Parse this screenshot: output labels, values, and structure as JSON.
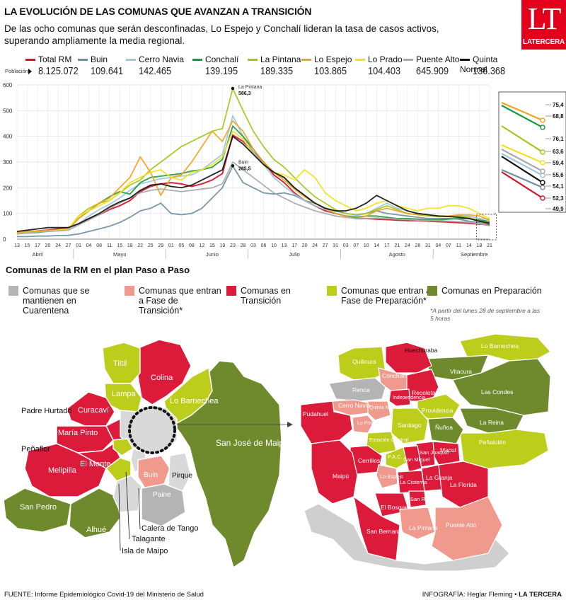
{
  "header": {
    "title": "LA EVOLUCIÓN DE LAS COMUNAS QUE AVANZAN A TRANSICIÓN",
    "subtitle": "De las ocho comunas que serán desconfinadas, Lo Espejo y Conchalí lideran la tasa de casos activos, superando ampliamente la media regional.",
    "logo_main": "LT",
    "logo_sub": "LATERCERA"
  },
  "legend": {
    "population_label": "Población",
    "items": [
      {
        "name": "Total RM",
        "population": "8.125.072",
        "color": "#d7132b"
      },
      {
        "name": "Buin",
        "population": "109.641",
        "color": "#6f8fa1"
      },
      {
        "name": "Cerro Navia",
        "population": "142.465",
        "color": "#9dc6e0"
      },
      {
        "name": "Conchalí",
        "population": "139.195",
        "color": "#1a9a3c"
      },
      {
        "name": "La Pintana",
        "population": "189.335",
        "color": "#a6c51a"
      },
      {
        "name": "Lo Espejo",
        "population": "103.865",
        "color": "#f2a31c"
      },
      {
        "name": "Lo Prado",
        "population": "104.403",
        "color": "#f5e11b"
      },
      {
        "name": "Puente Alto",
        "population": "645.909",
        "color": "#a9a9a9"
      },
      {
        "name": "Quinta Normal",
        "population": "136.368",
        "color": "#111111"
      }
    ]
  },
  "chart_data": {
    "type": "line",
    "ylim": [
      0,
      600
    ],
    "yticks": [
      0,
      100,
      200,
      300,
      400,
      500,
      600
    ],
    "x_day_labels": [
      "13",
      "15",
      "17",
      "20",
      "24",
      "27",
      "01",
      "04",
      "08",
      "11",
      "15",
      "18",
      "22",
      "25",
      "29",
      "01",
      "05",
      "08",
      "12",
      "15",
      "19",
      "23",
      "28",
      "03",
      "06",
      "10",
      "13",
      "17",
      "20",
      "24",
      "27",
      "31",
      "03",
      "07",
      "10",
      "14",
      "17",
      "21",
      "24",
      "28",
      "31",
      "04",
      "07",
      "11",
      "14",
      "18",
      "21"
    ],
    "x_month_labels": [
      "Abril",
      "Mayo",
      "Junio",
      "Julio",
      "Agosto",
      "Septiembre"
    ],
    "annotations": [
      {
        "series": "La Pintana",
        "label": "La Pintana",
        "value_label": "586,3",
        "index": 21,
        "value": 586.3
      },
      {
        "series": "Buin",
        "label": "Buin",
        "value_label": "285,5",
        "index": 21,
        "value": 285.5
      }
    ],
    "latest_values": [
      "75,4",
      "68,8",
      "76,1",
      "63,6",
      "59,4",
      "55,6",
      "54,1",
      "52,3",
      "49,9"
    ],
    "series": [
      {
        "name": "Total RM",
        "values": [
          20,
          28,
          32,
          35,
          40,
          45,
          60,
          80,
          95,
          115,
          130,
          150,
          185,
          205,
          215,
          220,
          215,
          205,
          215,
          230,
          255,
          405,
          380,
          340,
          300,
          250,
          220,
          180,
          150,
          130,
          110,
          100,
          90,
          80,
          80,
          78,
          76,
          74,
          72,
          72,
          70,
          68,
          66,
          64,
          62,
          58,
          56
        ]
      },
      {
        "name": "Buin",
        "values": [
          10,
          10,
          12,
          12,
          14,
          15,
          20,
          30,
          40,
          50,
          65,
          85,
          110,
          120,
          140,
          100,
          95,
          100,
          120,
          160,
          200,
          285,
          220,
          200,
          180,
          175,
          180,
          170,
          150,
          140,
          120,
          110,
          100,
          95,
          100,
          110,
          100,
          95,
          90,
          85,
          80,
          80,
          80,
          78,
          70,
          65,
          60
        ]
      },
      {
        "name": "Cerro Navia",
        "values": [
          20,
          25,
          30,
          32,
          35,
          40,
          60,
          90,
          115,
          135,
          160,
          190,
          215,
          225,
          235,
          240,
          245,
          250,
          270,
          300,
          330,
          480,
          400,
          340,
          290,
          240,
          205,
          175,
          150,
          130,
          115,
          100,
          90,
          90,
          100,
          120,
          140,
          120,
          110,
          100,
          95,
          90,
          90,
          92,
          90,
          80,
          76
        ]
      },
      {
        "name": "Conchalí",
        "values": [
          22,
          24,
          26,
          30,
          35,
          40,
          80,
          110,
          140,
          165,
          185,
          175,
          220,
          240,
          245,
          250,
          255,
          265,
          270,
          280,
          310,
          440,
          400,
          350,
          300,
          260,
          240,
          200,
          170,
          140,
          120,
          100,
          90,
          85,
          90,
          90,
          85,
          80,
          80,
          78,
          75,
          75,
          78,
          80,
          80,
          75,
          69
        ]
      },
      {
        "name": "La Pintana",
        "values": [
          25,
          28,
          30,
          32,
          35,
          40,
          90,
          120,
          140,
          150,
          180,
          210,
          230,
          270,
          300,
          330,
          360,
          380,
          400,
          420,
          430,
          586,
          500,
          420,
          360,
          310,
          280,
          240,
          200,
          165,
          140,
          115,
          100,
          95,
          100,
          115,
          130,
          115,
          100,
          95,
          90,
          88,
          88,
          90,
          85,
          70,
          64
        ]
      },
      {
        "name": "Lo Espejo",
        "values": [
          25,
          30,
          32,
          34,
          36,
          40,
          80,
          110,
          140,
          160,
          200,
          240,
          320,
          260,
          170,
          240,
          250,
          300,
          360,
          420,
          380,
          460,
          420,
          350,
          300,
          260,
          230,
          195,
          165,
          140,
          120,
          100,
          90,
          80,
          90,
          110,
          120,
          110,
          100,
          95,
          95,
          90,
          90,
          95,
          95,
          90,
          75
        ]
      },
      {
        "name": "Lo Prado",
        "values": [
          22,
          25,
          28,
          30,
          35,
          40,
          90,
          110,
          130,
          150,
          180,
          220,
          240,
          260,
          270,
          240,
          230,
          260,
          270,
          290,
          320,
          420,
          390,
          330,
          290,
          260,
          250,
          230,
          270,
          240,
          180,
          150,
          130,
          110,
          120,
          140,
          150,
          130,
          120,
          110,
          120,
          120,
          130,
          130,
          120,
          100,
          80
        ]
      },
      {
        "name": "Puente Alto",
        "values": [
          20,
          24,
          28,
          30,
          32,
          35,
          55,
          75,
          95,
          120,
          140,
          160,
          180,
          190,
          195,
          190,
          185,
          190,
          195,
          200,
          215,
          300,
          270,
          240,
          210,
          180,
          160,
          140,
          125,
          110,
          100,
          90,
          85,
          80,
          80,
          82,
          80,
          78,
          76,
          74,
          72,
          72,
          70,
          68,
          66,
          60,
          52
        ]
      },
      {
        "name": "Quinta Normal",
        "values": [
          30,
          35,
          40,
          45,
          45,
          45,
          60,
          80,
          100,
          125,
          145,
          160,
          190,
          210,
          215,
          205,
          200,
          210,
          230,
          250,
          270,
          400,
          370,
          330,
          290,
          260,
          240,
          200,
          170,
          140,
          120,
          110,
          110,
          120,
          140,
          170,
          150,
          130,
          110,
          100,
          95,
          90,
          88,
          85,
          80,
          70,
          62
        ]
      }
    ]
  },
  "map_section": {
    "title": "Comunas de la RM en el  plan Paso a Paso",
    "categories": [
      {
        "label": "Comunas que se mantienen en Cuarentena",
        "color": "#b4b4b4"
      },
      {
        "label": "Comunas que entran a Fase de Transición*",
        "color": "#ef9a8c"
      },
      {
        "label": "Comunas en Transición",
        "color": "#dc1a3a"
      },
      {
        "label": "Comunas que entran a Fase de Preparación*",
        "color": "#bccd1c"
      },
      {
        "label": "Comunas en Preparación",
        "color": "#6e8a2c"
      }
    ],
    "note": "*A partir del lunes 28 de septiembre a las 5 horas",
    "region_labels": [
      "Tiltil",
      "Colina",
      "Lampa",
      "Lo Barnechea",
      "Curacaví",
      "Padre Hurtado",
      "María Pinto",
      "Peñaflor",
      "San José de Maipo",
      "El Monte",
      "Melipilla",
      "Buin",
      "Pirque",
      "Paine",
      "San Pedro",
      "Alhué",
      "Calera de Tango",
      "Talagante",
      "Isla de Maipo"
    ],
    "city_labels": [
      "Huechuraba",
      "Lo Barnechea",
      "Quilicura",
      "Conchalí",
      "Vitacura",
      "Renca",
      "Recoleta",
      "Independencia",
      "Las Condes",
      "Cerro Navia",
      "Quinta Normal",
      "Providencia",
      "Pudahuel",
      "Lo Prado",
      "Santiago",
      "Ñuñoa",
      "La Reina",
      "Estación Central",
      "Peñalolén",
      "P.A.C.",
      "Macul",
      "San Joaquín",
      "San Miguel",
      "Cerrillos",
      "Lo Espejo",
      "La Granja",
      "La Florida",
      "La Cisterna",
      "San Ramón",
      "Maipú",
      "El Bosque",
      "San Bernardo",
      "La Pintana",
      "Puente Alto"
    ]
  },
  "footer": {
    "source": "FUENTE: Informe Epidemiológico Covid-19 del Ministerio de Salud",
    "credit_prefix": "INFOGRAFÍA: Heglar Fleming • ",
    "credit_brand": "LA TERCERA"
  }
}
